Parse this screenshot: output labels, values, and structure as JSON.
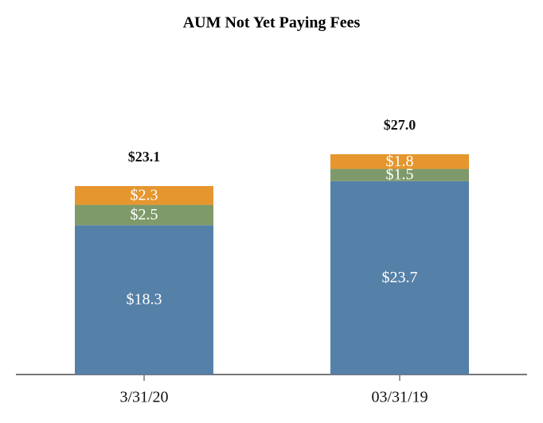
{
  "chart_data": {
    "type": "stacked-bar",
    "title": "AUM Not Yet Paying Fees",
    "categories": [
      "3/31/20",
      "03/31/19"
    ],
    "series": [
      {
        "color": "#5580a8",
        "values": [
          18.3,
          23.7
        ],
        "value_labels": [
          "$18.3",
          "$23.7"
        ]
      },
      {
        "color": "#7f9a6a",
        "values": [
          2.5,
          1.5
        ],
        "value_labels": [
          "$2.5",
          "$1.5"
        ]
      },
      {
        "color": "#e5962e",
        "values": [
          2.3,
          1.8
        ],
        "value_labels": [
          "$2.3",
          "$1.8"
        ]
      }
    ],
    "totals": [
      23.1,
      27.0
    ],
    "total_labels": [
      "$23.1",
      "$27.0"
    ]
  }
}
